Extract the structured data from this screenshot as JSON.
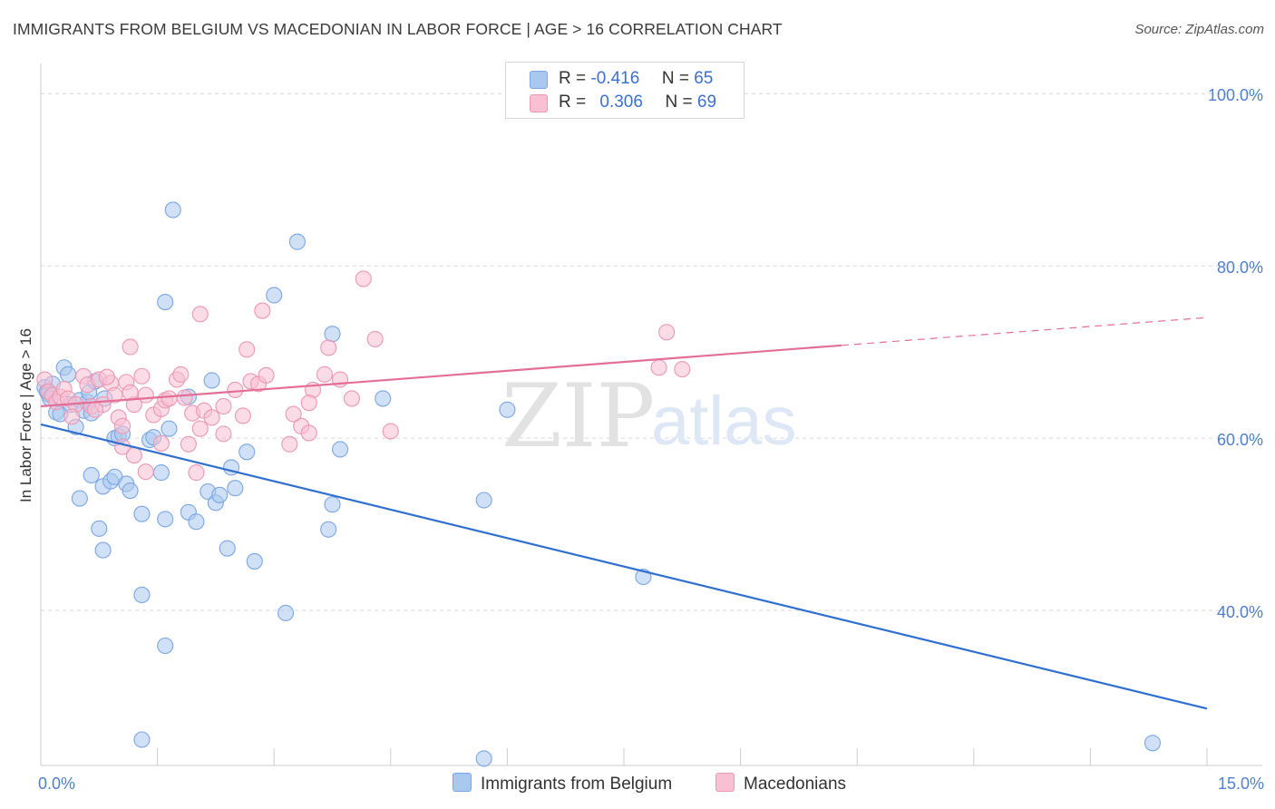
{
  "title": "IMMIGRANTS FROM BELGIUM VS MACEDONIAN IN LABOR FORCE | AGE > 16 CORRELATION CHART",
  "source": "Source: ZipAtlas.com",
  "watermark": {
    "zip": "ZIP",
    "atlas": "atlas"
  },
  "legend": {
    "rows": [
      {
        "r_label": "R =",
        "r_value": "-0.416",
        "n_label": "N =",
        "n_value": "65",
        "color": "#a9c8f0",
        "border": "#7aa6e3"
      },
      {
        "r_label": "R =",
        "r_value": "0.306",
        "n_label": "N =",
        "n_value": "69",
        "color": "#f8c0d2",
        "border": "#ec97b3"
      }
    ]
  },
  "bottom_legend": [
    {
      "label": "Immigrants from Belgium",
      "color": "#a9c8f0",
      "border": "#7aa6e3"
    },
    {
      "label": "Macedonians",
      "color": "#f8c0d2",
      "border": "#ec97b3"
    }
  ],
  "chart_data": {
    "type": "scatter",
    "title": "IMMIGRANTS FROM BELGIUM VS MACEDONIAN IN LABOR FORCE | AGE > 16 CORRELATION CHART",
    "xlabel": "",
    "ylabel": "In Labor Force | Age > 16",
    "xlim": [
      0,
      15
    ],
    "ylim": [
      22,
      103.5
    ],
    "x_tick_labels": [
      {
        "value": 0,
        "label": "0.0%"
      },
      {
        "value": 15,
        "label": "15.0%"
      }
    ],
    "y_tick_labels": [
      {
        "value": 40,
        "label": "40.0%"
      },
      {
        "value": 60,
        "label": "60.0%"
      },
      {
        "value": 80,
        "label": "80.0%"
      },
      {
        "value": 100,
        "label": "100.0%"
      }
    ],
    "grid": "horizontal-dashed",
    "legend_position": "top-center",
    "series": [
      {
        "name": "Immigrants from Belgium",
        "color": "#a9c8f0",
        "stroke": "#7aa6e3",
        "line_color": "#2f6fd0",
        "trend": {
          "x": [
            0,
            15
          ],
          "y": [
            61.6,
            28.6
          ],
          "dashed_from": null
        },
        "points": [
          [
            0.05,
            65.9
          ],
          [
            0.08,
            65.4
          ],
          [
            0.1,
            65.1
          ],
          [
            0.12,
            64.6
          ],
          [
            0.15,
            66.3
          ],
          [
            0.2,
            63.0
          ],
          [
            0.25,
            62.8
          ],
          [
            0.3,
            68.2
          ],
          [
            0.35,
            67.4
          ],
          [
            0.38,
            63.9
          ],
          [
            0.45,
            61.3
          ],
          [
            0.5,
            64.4
          ],
          [
            0.55,
            63.2
          ],
          [
            0.6,
            64.2
          ],
          [
            0.62,
            65.3
          ],
          [
            0.65,
            62.9
          ],
          [
            0.7,
            66.6
          ],
          [
            0.82,
            64.6
          ],
          [
            0.95,
            60.0
          ],
          [
            1.0,
            60.2
          ],
          [
            1.05,
            60.5
          ],
          [
            1.4,
            59.8
          ],
          [
            1.45,
            60.1
          ],
          [
            1.65,
            61.1
          ],
          [
            1.9,
            64.8
          ],
          [
            2.2,
            66.7
          ],
          [
            2.65,
            58.4
          ],
          [
            3.0,
            76.6
          ],
          [
            3.3,
            82.8
          ],
          [
            3.75,
            72.1
          ],
          [
            3.85,
            58.7
          ],
          [
            4.4,
            64.6
          ],
          [
            6.0,
            63.3
          ],
          [
            1.6,
            75.8
          ],
          [
            1.7,
            86.5
          ],
          [
            0.5,
            53.0
          ],
          [
            0.65,
            55.7
          ],
          [
            0.8,
            54.4
          ],
          [
            0.9,
            55.0
          ],
          [
            0.95,
            55.5
          ],
          [
            1.1,
            54.7
          ],
          [
            1.15,
            53.9
          ],
          [
            1.3,
            51.2
          ],
          [
            1.55,
            56.0
          ],
          [
            1.6,
            50.6
          ],
          [
            1.9,
            51.4
          ],
          [
            2.0,
            50.3
          ],
          [
            2.15,
            53.8
          ],
          [
            2.25,
            52.5
          ],
          [
            2.3,
            53.4
          ],
          [
            2.45,
            56.6
          ],
          [
            2.5,
            54.2
          ],
          [
            3.75,
            52.3
          ],
          [
            3.7,
            49.4
          ],
          [
            5.7,
            52.8
          ],
          [
            0.75,
            49.5
          ],
          [
            0.8,
            47.0
          ],
          [
            2.4,
            47.2
          ],
          [
            2.75,
            45.7
          ],
          [
            1.3,
            41.8
          ],
          [
            3.15,
            39.7
          ],
          [
            1.6,
            35.9
          ],
          [
            7.75,
            43.9
          ],
          [
            1.3,
            25.0
          ],
          [
            5.7,
            22.8
          ],
          [
            14.3,
            24.6
          ]
        ]
      },
      {
        "name": "Macedonians",
        "color": "#f8c0d2",
        "stroke": "#ec97b3",
        "line_color": "#e36f98",
        "trend": {
          "x": [
            0,
            15
          ],
          "y": [
            63.7,
            74.0
          ],
          "dashed_from": 10.3
        },
        "points": [
          [
            0.05,
            66.8
          ],
          [
            0.1,
            65.4
          ],
          [
            0.15,
            65.0
          ],
          [
            0.2,
            64.2
          ],
          [
            0.25,
            64.8
          ],
          [
            0.3,
            65.7
          ],
          [
            0.35,
            64.6
          ],
          [
            0.45,
            63.9
          ],
          [
            0.55,
            67.2
          ],
          [
            0.6,
            66.2
          ],
          [
            0.65,
            63.7
          ],
          [
            0.75,
            66.8
          ],
          [
            0.8,
            63.9
          ],
          [
            0.9,
            66.4
          ],
          [
            0.95,
            65.0
          ],
          [
            1.0,
            62.4
          ],
          [
            1.05,
            61.4
          ],
          [
            1.1,
            66.5
          ],
          [
            1.2,
            63.9
          ],
          [
            1.3,
            67.2
          ],
          [
            1.35,
            65.0
          ],
          [
            1.45,
            62.7
          ],
          [
            1.55,
            63.4
          ],
          [
            1.6,
            64.4
          ],
          [
            1.75,
            66.8
          ],
          [
            1.85,
            64.7
          ],
          [
            1.95,
            62.9
          ],
          [
            2.1,
            63.2
          ],
          [
            2.2,
            62.4
          ],
          [
            2.35,
            63.7
          ],
          [
            2.7,
            66.6
          ],
          [
            2.8,
            66.3
          ],
          [
            3.35,
            61.4
          ],
          [
            3.45,
            60.6
          ],
          [
            3.65,
            67.4
          ],
          [
            3.85,
            66.8
          ],
          [
            4.0,
            64.6
          ],
          [
            4.5,
            60.8
          ],
          [
            1.05,
            59.0
          ],
          [
            1.2,
            58.0
          ],
          [
            1.35,
            56.1
          ],
          [
            1.55,
            59.4
          ],
          [
            1.9,
            59.3
          ],
          [
            2.35,
            60.5
          ],
          [
            3.2,
            59.3
          ],
          [
            2.0,
            56.0
          ],
          [
            1.15,
            70.6
          ],
          [
            2.65,
            70.3
          ],
          [
            3.7,
            70.5
          ],
          [
            4.3,
            71.5
          ],
          [
            2.05,
            74.4
          ],
          [
            2.85,
            74.8
          ],
          [
            4.15,
            78.5
          ],
          [
            8.05,
            72.3
          ],
          [
            7.95,
            68.2
          ],
          [
            8.25,
            68.0
          ],
          [
            3.5,
            65.6
          ],
          [
            3.45,
            64.1
          ],
          [
            0.85,
            67.1
          ],
          [
            1.15,
            65.3
          ],
          [
            1.65,
            64.6
          ],
          [
            2.05,
            61.1
          ],
          [
            2.6,
            62.6
          ],
          [
            2.9,
            67.3
          ],
          [
            0.4,
            62.5
          ],
          [
            0.7,
            63.3
          ],
          [
            1.8,
            67.4
          ],
          [
            3.25,
            62.8
          ],
          [
            2.5,
            65.6
          ]
        ]
      }
    ]
  }
}
